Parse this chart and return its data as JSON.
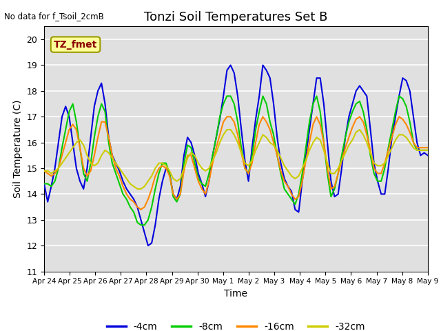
{
  "title": "Tonzi Soil Temperatures Set B",
  "xlabel": "Time",
  "ylabel": "Soil Temperature (C)",
  "ylim": [
    11.0,
    20.5
  ],
  "yticks": [
    11.0,
    12.0,
    13.0,
    14.0,
    15.0,
    16.0,
    17.0,
    18.0,
    19.0,
    20.0
  ],
  "note_text": "No data for f_Tsoil_2cmB",
  "box_label": "TZ_fmet",
  "colors": {
    "-4cm": "#0000dd",
    "-8cm": "#00cc00",
    "-16cm": "#ff8800",
    "-32cm": "#cccc00"
  },
  "xtick_labels": [
    "Apr 24",
    "Apr 25",
    "Apr 26",
    "Apr 27",
    "Apr 28",
    "Apr 29",
    "Apr 30",
    "May 1",
    "May 2",
    "May 3",
    "May 4",
    "May 5",
    "May 6",
    "May 7",
    "May 8",
    "May 9"
  ],
  "series_4cm": [
    14.4,
    13.7,
    14.3,
    15.0,
    16.0,
    17.0,
    17.4,
    17.0,
    16.0,
    15.0,
    14.5,
    14.2,
    15.0,
    16.2,
    17.4,
    18.0,
    18.3,
    17.5,
    16.2,
    15.5,
    15.2,
    14.9,
    14.5,
    14.2,
    14.0,
    13.8,
    13.5,
    13.0,
    12.5,
    12.0,
    12.1,
    12.8,
    13.8,
    14.5,
    15.0,
    14.8,
    14.0,
    13.8,
    14.3,
    15.5,
    16.2,
    16.0,
    15.5,
    14.8,
    14.4,
    13.9,
    14.5,
    15.5,
    16.2,
    16.9,
    17.8,
    18.8,
    19.0,
    18.7,
    17.8,
    16.5,
    15.3,
    14.5,
    15.8,
    16.9,
    17.8,
    19.0,
    18.8,
    18.5,
    17.5,
    16.2,
    15.2,
    14.6,
    14.3,
    14.1,
    13.4,
    13.3,
    14.5,
    15.5,
    16.5,
    17.5,
    18.5,
    18.5,
    17.5,
    16.0,
    14.5,
    13.9,
    14.0,
    15.0,
    16.2,
    17.0,
    17.5,
    18.0,
    18.2,
    18.0,
    17.8,
    16.5,
    15.2,
    14.5,
    14.0,
    14.0,
    15.0,
    16.2,
    17.0,
    17.8,
    18.5,
    18.4,
    18.0,
    17.0,
    16.0,
    15.5,
    15.6,
    15.5
  ],
  "series_8cm": [
    14.4,
    14.4,
    14.3,
    14.5,
    15.0,
    15.8,
    16.5,
    17.2,
    17.5,
    16.8,
    15.8,
    14.8,
    14.5,
    15.2,
    16.2,
    17.0,
    17.5,
    17.2,
    16.0,
    15.2,
    14.8,
    14.4,
    14.0,
    13.8,
    13.5,
    13.3,
    12.9,
    12.8,
    12.8,
    13.0,
    13.5,
    14.2,
    14.8,
    15.2,
    15.2,
    14.8,
    13.9,
    13.7,
    14.0,
    15.2,
    15.9,
    15.8,
    15.2,
    14.6,
    14.4,
    14.3,
    14.8,
    15.5,
    16.2,
    17.0,
    17.5,
    17.8,
    17.8,
    17.5,
    16.8,
    15.8,
    15.0,
    14.8,
    15.5,
    16.5,
    17.2,
    17.8,
    17.5,
    16.8,
    16.3,
    15.5,
    14.8,
    14.2,
    14.0,
    13.8,
    13.6,
    14.0,
    14.8,
    15.8,
    16.8,
    17.5,
    17.8,
    17.2,
    16.0,
    14.8,
    13.9,
    14.2,
    14.8,
    15.5,
    16.2,
    16.8,
    17.2,
    17.5,
    17.6,
    17.2,
    16.5,
    15.5,
    14.8,
    14.5,
    14.5,
    15.0,
    15.8,
    16.5,
    17.2,
    17.8,
    17.7,
    17.4,
    16.8,
    16.0,
    15.7,
    15.7,
    15.7,
    15.7
  ],
  "series_16cm": [
    14.9,
    14.8,
    14.7,
    14.8,
    15.0,
    15.5,
    16.0,
    16.5,
    16.7,
    16.5,
    15.8,
    15.0,
    14.7,
    14.9,
    15.5,
    16.2,
    16.8,
    16.8,
    16.2,
    15.5,
    15.0,
    14.7,
    14.3,
    14.0,
    13.8,
    13.7,
    13.5,
    13.4,
    13.5,
    13.8,
    14.2,
    14.7,
    15.0,
    15.1,
    15.0,
    14.7,
    14.0,
    13.8,
    14.0,
    14.9,
    15.5,
    15.5,
    15.0,
    14.5,
    14.2,
    14.0,
    14.5,
    15.2,
    15.8,
    16.3,
    16.8,
    17.0,
    17.0,
    16.8,
    16.3,
    15.6,
    15.0,
    14.8,
    15.2,
    16.0,
    16.7,
    17.0,
    16.8,
    16.5,
    16.0,
    15.5,
    14.9,
    14.5,
    14.3,
    14.0,
    13.8,
    13.9,
    14.5,
    15.3,
    16.0,
    16.7,
    17.0,
    16.7,
    16.0,
    15.0,
    14.2,
    14.3,
    14.8,
    15.3,
    15.8,
    16.2,
    16.6,
    16.9,
    17.0,
    16.8,
    16.3,
    15.7,
    15.0,
    14.8,
    14.8,
    15.2,
    15.7,
    16.2,
    16.7,
    17.0,
    16.9,
    16.7,
    16.4,
    16.0,
    15.8,
    15.8,
    15.8,
    15.8
  ],
  "series_32cm": [
    14.9,
    14.9,
    14.8,
    14.9,
    15.0,
    15.2,
    15.4,
    15.6,
    15.8,
    16.0,
    16.1,
    15.9,
    15.5,
    15.2,
    15.1,
    15.2,
    15.5,
    15.7,
    15.6,
    15.4,
    15.2,
    15.0,
    14.8,
    14.6,
    14.4,
    14.3,
    14.2,
    14.2,
    14.3,
    14.5,
    14.7,
    15.0,
    15.2,
    15.2,
    15.1,
    14.9,
    14.6,
    14.5,
    14.6,
    15.0,
    15.4,
    15.6,
    15.5,
    15.2,
    15.0,
    14.9,
    15.0,
    15.3,
    15.6,
    16.0,
    16.3,
    16.5,
    16.5,
    16.3,
    16.0,
    15.6,
    15.2,
    15.1,
    15.3,
    15.7,
    16.0,
    16.3,
    16.2,
    16.0,
    15.9,
    15.7,
    15.4,
    15.1,
    14.9,
    14.7,
    14.6,
    14.7,
    15.0,
    15.3,
    15.7,
    16.0,
    16.2,
    16.1,
    15.7,
    15.2,
    14.8,
    14.8,
    15.0,
    15.3,
    15.6,
    15.9,
    16.1,
    16.4,
    16.5,
    16.3,
    16.0,
    15.6,
    15.2,
    15.1,
    15.1,
    15.2,
    15.5,
    15.8,
    16.1,
    16.3,
    16.3,
    16.2,
    16.0,
    15.8,
    15.7,
    15.7,
    15.7,
    15.7
  ]
}
